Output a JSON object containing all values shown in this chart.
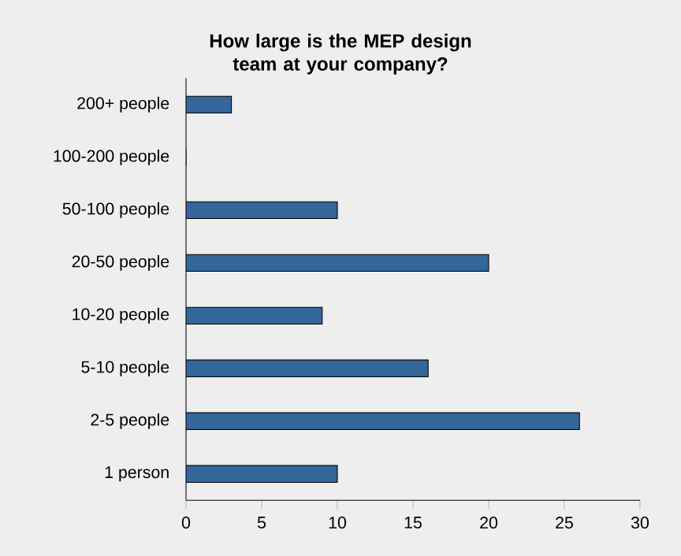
{
  "chart_data": {
    "type": "bar",
    "orientation": "horizontal",
    "title": "How large is the MEP design team at your company?",
    "categories": [
      "200+ people",
      "100-200 people",
      "50-100 people",
      "20-50 people",
      "10-20 people",
      "5-10 people",
      "2-5 people",
      "1 person"
    ],
    "values": [
      3,
      0,
      10,
      20,
      9,
      16,
      26,
      10
    ],
    "color": "#336699",
    "xlim": [
      0,
      30
    ],
    "xticks": [
      0,
      5,
      10,
      15,
      20,
      25,
      30
    ]
  }
}
